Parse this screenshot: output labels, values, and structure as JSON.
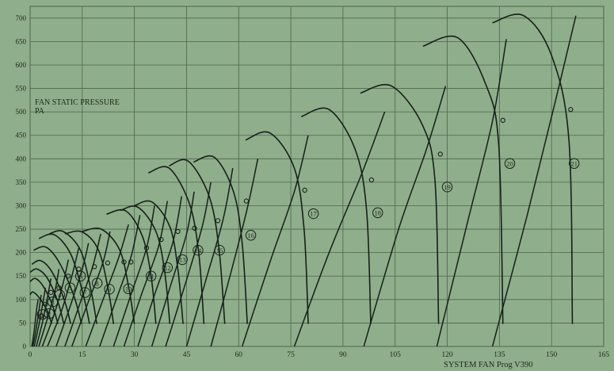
{
  "chart_data": {
    "type": "line",
    "title": "",
    "xlabel": "SYSTEM FAN Prog V390",
    "ylabel_lines": [
      "FAN STATIC PRESSURE",
      "PA"
    ],
    "xlim": [
      0,
      165
    ],
    "ylim": [
      0,
      725
    ],
    "x_ticks": [
      0,
      15,
      30,
      45,
      60,
      75,
      90,
      105,
      120,
      135,
      150,
      165
    ],
    "y_ticks": [
      0,
      50,
      100,
      150,
      200,
      250,
      300,
      350,
      400,
      450,
      500,
      550,
      600,
      650,
      700
    ],
    "grid": true,
    "colors": {
      "background": "#8fae8b",
      "grid": "#4e654c",
      "line": "#15201a",
      "text": "#1c2a1c"
    },
    "fan_curves": [
      {
        "label": "1",
        "points": [
          [
            0,
            110
          ],
          [
            0.8,
            116
          ],
          [
            2.6,
            104
          ],
          [
            4.8,
            78
          ],
          [
            6.2,
            48
          ]
        ]
      },
      {
        "label": "2",
        "points": [
          [
            0,
            138
          ],
          [
            1.5,
            145
          ],
          [
            3.8,
            128
          ],
          [
            6.4,
            88
          ],
          [
            8,
            48
          ]
        ]
      },
      {
        "label": "3",
        "points": [
          [
            0,
            158
          ],
          [
            2,
            165
          ],
          [
            5,
            145
          ],
          [
            8,
            95
          ],
          [
            9.7,
            48
          ]
        ]
      },
      {
        "label": "4",
        "points": [
          [
            0.5,
            175
          ],
          [
            3,
            183
          ],
          [
            6.2,
            160
          ],
          [
            9.8,
            100
          ],
          [
            11.7,
            48
          ]
        ]
      },
      {
        "label": "5",
        "points": [
          [
            1,
            205
          ],
          [
            4.5,
            212
          ],
          [
            8.3,
            180
          ],
          [
            12.5,
            110
          ],
          [
            14.8,
            48
          ]
        ]
      },
      {
        "label": "6",
        "points": [
          [
            2.5,
            230
          ],
          [
            7,
            238
          ],
          [
            11.8,
            195
          ],
          [
            15.3,
            110
          ],
          [
            17.1,
            48
          ]
        ]
      },
      {
        "label": "7",
        "points": [
          [
            5.5,
            240
          ],
          [
            9.5,
            245
          ],
          [
            14.5,
            205
          ],
          [
            17.5,
            120
          ],
          [
            19.2,
            48
          ]
        ]
      },
      {
        "label": "8",
        "points": [
          [
            10,
            240
          ],
          [
            15,
            244
          ],
          [
            19.7,
            205
          ],
          [
            22.5,
            120
          ],
          [
            24,
            48
          ]
        ]
      },
      {
        "label": "9",
        "points": [
          [
            15,
            245
          ],
          [
            20.5,
            250
          ],
          [
            25.8,
            205
          ],
          [
            28.5,
            120
          ],
          [
            30,
            48
          ]
        ]
      },
      {
        "label": "10",
        "points": [
          [
            22,
            282
          ],
          [
            27.5,
            289
          ],
          [
            32.3,
            235
          ],
          [
            34.8,
            150
          ],
          [
            36.2,
            48
          ]
        ]
      },
      {
        "label": "11",
        "points": [
          [
            26,
            290
          ],
          [
            31,
            297
          ],
          [
            36.2,
            245
          ],
          [
            38.7,
            160
          ],
          [
            40.2,
            48
          ]
        ]
      },
      {
        "label": "12",
        "points": [
          [
            30,
            300
          ],
          [
            35,
            308
          ],
          [
            40.2,
            255
          ],
          [
            42.5,
            165
          ],
          [
            44,
            48
          ]
        ]
      },
      {
        "label": "13",
        "points": [
          [
            34,
            370
          ],
          [
            40,
            380
          ],
          [
            45.8,
            305
          ],
          [
            48.5,
            200
          ],
          [
            50,
            48
          ]
        ]
      },
      {
        "label": "14",
        "points": [
          [
            40,
            385
          ],
          [
            45.5,
            395
          ],
          [
            51.5,
            320
          ],
          [
            54.3,
            210
          ],
          [
            56,
            48
          ]
        ]
      },
      {
        "label": "15",
        "points": [
          [
            47,
            393
          ],
          [
            53,
            403
          ],
          [
            58.5,
            330
          ],
          [
            61,
            220
          ],
          [
            62.5,
            48
          ]
        ]
      },
      {
        "label": "16",
        "points": [
          [
            62,
            440
          ],
          [
            69,
            455
          ],
          [
            76,
            380
          ],
          [
            78.8,
            250
          ],
          [
            80,
            48
          ]
        ]
      },
      {
        "label": "17",
        "points": [
          [
            78,
            490
          ],
          [
            86,
            505
          ],
          [
            93.5,
            420
          ],
          [
            96.8,
            290
          ],
          [
            98,
            48
          ]
        ]
      },
      {
        "label": "18",
        "points": [
          [
            95,
            540
          ],
          [
            104,
            555
          ],
          [
            113,
            470
          ],
          [
            116.5,
            350
          ],
          [
            117.5,
            48
          ]
        ]
      },
      {
        "label": "19",
        "points": [
          [
            113,
            640
          ],
          [
            123,
            658
          ],
          [
            131,
            560
          ],
          [
            134.8,
            430
          ],
          [
            136,
            48
          ]
        ]
      },
      {
        "label": "20",
        "points": [
          [
            133,
            690
          ],
          [
            142,
            705
          ],
          [
            150,
            620
          ],
          [
            155,
            440
          ],
          [
            156,
            48
          ]
        ]
      }
    ],
    "system_curves": [
      {
        "points": [
          [
            0.5,
            0
          ],
          [
            1.2,
            35
          ],
          [
            1.8,
            75
          ],
          [
            2.3,
            100
          ]
        ]
      },
      {
        "points": [
          [
            0.8,
            0
          ],
          [
            1.8,
            40
          ],
          [
            2.6,
            80
          ],
          [
            3.2,
            110
          ]
        ]
      },
      {
        "points": [
          [
            1.2,
            0
          ],
          [
            2.5,
            45
          ],
          [
            3.6,
            90
          ],
          [
            4.4,
            125
          ]
        ]
      },
      {
        "points": [
          [
            1.8,
            0
          ],
          [
            3.5,
            50
          ],
          [
            5,
            105
          ],
          [
            6,
            145
          ]
        ]
      },
      {
        "points": [
          [
            2.5,
            0
          ],
          [
            5,
            60
          ],
          [
            7.2,
            120
          ],
          [
            8.3,
            165
          ]
        ]
      },
      {
        "points": [
          [
            3.5,
            0
          ],
          [
            7,
            70
          ],
          [
            9.5,
            135
          ],
          [
            11,
            185
          ]
        ]
      },
      {
        "points": [
          [
            5,
            0
          ],
          [
            9,
            75
          ],
          [
            12,
            150
          ],
          [
            14,
            210
          ]
        ]
      },
      {
        "points": [
          [
            7.5,
            0
          ],
          [
            11.5,
            85
          ],
          [
            15,
            165
          ],
          [
            16.8,
            220
          ]
        ]
      },
      {
        "points": [
          [
            10,
            0
          ],
          [
            14.5,
            95
          ],
          [
            18,
            170
          ],
          [
            20.3,
            240
          ]
        ]
      },
      {
        "points": [
          [
            12,
            0
          ],
          [
            17,
            100
          ],
          [
            21,
            180
          ],
          [
            23,
            245
          ]
        ]
      },
      {
        "points": [
          [
            16,
            0
          ],
          [
            21,
            100
          ],
          [
            25.5,
            190
          ],
          [
            28.3,
            260
          ]
        ]
      },
      {
        "points": [
          [
            20,
            0
          ],
          [
            25,
            105
          ],
          [
            29,
            190
          ],
          [
            31.6,
            280
          ]
        ]
      },
      {
        "points": [
          [
            24,
            0
          ],
          [
            29,
            110
          ],
          [
            33.5,
            210
          ],
          [
            35.8,
            300
          ]
        ]
      },
      {
        "points": [
          [
            27,
            0
          ],
          [
            32,
            110
          ],
          [
            37,
            215
          ],
          [
            39.5,
            310
          ]
        ]
      },
      {
        "points": [
          [
            31,
            0
          ],
          [
            36,
            115
          ],
          [
            41,
            220
          ],
          [
            43.6,
            320
          ]
        ]
      },
      {
        "points": [
          [
            35,
            0
          ],
          [
            40,
            120
          ],
          [
            45,
            240
          ],
          [
            47.2,
            330
          ]
        ]
      },
      {
        "points": [
          [
            39,
            0
          ],
          [
            44.5,
            130
          ],
          [
            49.5,
            255
          ],
          [
            52,
            350
          ]
        ]
      },
      {
        "points": [
          [
            45,
            0
          ],
          [
            50.5,
            140
          ],
          [
            55.5,
            270
          ],
          [
            58.3,
            380
          ]
        ]
      },
      {
        "points": [
          [
            52,
            0
          ],
          [
            57.5,
            150
          ],
          [
            62.5,
            295
          ],
          [
            65.5,
            400
          ]
        ]
      },
      {
        "points": [
          [
            61,
            0
          ],
          [
            69,
            180
          ],
          [
            76,
            330
          ],
          [
            80,
            450
          ]
        ]
      },
      {
        "points": [
          [
            76,
            0
          ],
          [
            86,
            200
          ],
          [
            95.5,
            370
          ],
          [
            102,
            500
          ]
        ]
      },
      {
        "points": [
          [
            96,
            0
          ],
          [
            106,
            250
          ],
          [
            114,
            420
          ],
          [
            119.5,
            555
          ]
        ]
      },
      {
        "points": [
          [
            117,
            0
          ],
          [
            126,
            270
          ],
          [
            133,
            480
          ],
          [
            137,
            655
          ]
        ]
      },
      {
        "points": [
          [
            133,
            0
          ],
          [
            143,
            280
          ],
          [
            151,
            520
          ],
          [
            157,
            705
          ]
        ]
      }
    ],
    "operating_points": [
      {
        "label": "1",
        "x": 3.2,
        "y": 65,
        "tag_x": 3.5,
        "tag_y": 68
      },
      {
        "label": "2",
        "x": 4.4,
        "y": 90,
        "tag_x": 5.5,
        "tag_y": 70
      },
      {
        "label": "3",
        "x": 6,
        "y": 115,
        "tag_x": 6.5,
        "tag_y": 95
      },
      {
        "label": "4",
        "x": 8.3,
        "y": 125,
        "tag_x": 8.5,
        "tag_y": 110
      },
      {
        "label": "5",
        "x": 11,
        "y": 150,
        "tag_x": 11.5,
        "tag_y": 125
      },
      {
        "label": "6",
        "x": 14,
        "y": 165,
        "tag_x": 14.5,
        "tag_y": 150
      },
      {
        "label": "7",
        "x": 18.5,
        "y": 170,
        "tag_x": 15.8,
        "tag_y": 115
      },
      {
        "label": "8",
        "x": 22.3,
        "y": 178,
        "tag_x": 19.3,
        "tag_y": 135
      },
      {
        "label": "9",
        "x": 27,
        "y": 180,
        "tag_x": 22.8,
        "tag_y": 122
      },
      {
        "label": "10",
        "x": 29,
        "y": 180,
        "tag_x": 28.3,
        "tag_y": 123
      },
      {
        "label": "11",
        "x": 33.5,
        "y": 210,
        "tag_x": 34.8,
        "tag_y": 150
      },
      {
        "label": "12",
        "x": 37.7,
        "y": 228,
        "tag_x": 39.5,
        "tag_y": 168
      },
      {
        "label": "13",
        "x": 42.5,
        "y": 245,
        "tag_x": 43.8,
        "tag_y": 185
      },
      {
        "label": "14",
        "x": 47.3,
        "y": 252,
        "tag_x": 48.3,
        "tag_y": 205
      },
      {
        "label": "15",
        "x": 54,
        "y": 268,
        "tag_x": 54.5,
        "tag_y": 205
      },
      {
        "label": "16",
        "x": 62.2,
        "y": 310,
        "tag_x": 63.5,
        "tag_y": 237
      },
      {
        "label": "17",
        "x": 79,
        "y": 333,
        "tag_x": 81.5,
        "tag_y": 283
      },
      {
        "label": "18",
        "x": 98.2,
        "y": 355,
        "tag_x": 100,
        "tag_y": 285
      },
      {
        "label": "19",
        "x": 118,
        "y": 410,
        "tag_x": 120,
        "tag_y": 340
      },
      {
        "label": "20",
        "x": 136,
        "y": 482,
        "tag_x": 138,
        "tag_y": 390
      },
      {
        "label": "21",
        "x": 155.5,
        "y": 505,
        "tag_x": 156.5,
        "tag_y": 390
      }
    ]
  }
}
